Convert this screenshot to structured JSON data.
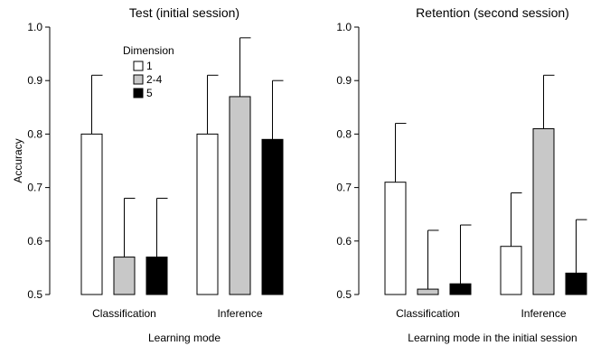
{
  "chart_data": [
    {
      "type": "bar",
      "title": "Test (initial session)",
      "xlabel": "Learning mode",
      "ylabel": "Accuracy",
      "ylim": [
        0.5,
        1.0
      ],
      "yticks": [
        "0.5",
        "0.6",
        "0.7",
        "0.8",
        "0.9",
        "1.0"
      ],
      "categories": [
        "Classification",
        "Inference"
      ],
      "series": [
        {
          "name": "1",
          "values": [
            0.8,
            0.8
          ],
          "errors": [
            0.11,
            0.11
          ],
          "color": "#ffffff"
        },
        {
          "name": "2-4",
          "values": [
            0.57,
            0.87
          ],
          "errors": [
            0.11,
            0.11
          ],
          "color": "#c8c8c8"
        },
        {
          "name": "5",
          "values": [
            0.57,
            0.79
          ],
          "errors": [
            0.11,
            0.11
          ],
          "color": "#000000"
        }
      ],
      "legend": {
        "title": "Dimension",
        "placement": "top-left"
      },
      "grid": false
    },
    {
      "type": "bar",
      "title": "Retention (second session)",
      "xlabel": "Learning mode in the initial session",
      "ylabel": "",
      "ylim": [
        0.5,
        1.0
      ],
      "yticks": [
        "0.5",
        "0.6",
        "0.7",
        "0.8",
        "0.9",
        "1.0"
      ],
      "categories": [
        "Classification",
        "Inference"
      ],
      "series": [
        {
          "name": "1",
          "values": [
            0.71,
            0.59
          ],
          "errors": [
            0.11,
            0.1
          ],
          "color": "#ffffff"
        },
        {
          "name": "2-4",
          "values": [
            0.51,
            0.81
          ],
          "errors": [
            0.11,
            0.1
          ],
          "color": "#c8c8c8"
        },
        {
          "name": "5",
          "values": [
            0.52,
            0.54
          ],
          "errors": [
            0.11,
            0.1
          ],
          "color": "#000000"
        }
      ],
      "grid": false
    }
  ]
}
